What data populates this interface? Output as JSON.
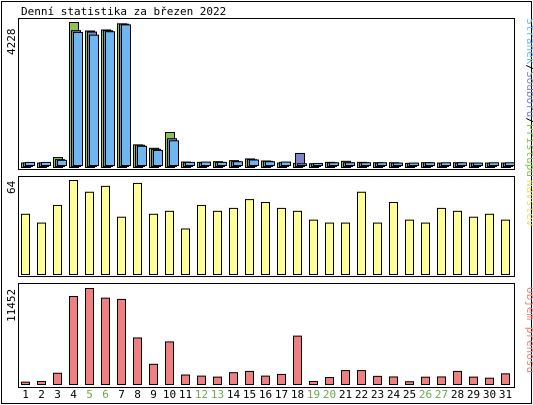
{
  "title": "Denní statistika za březen 2022",
  "panels": [
    {
      "id": "hits",
      "scale_label": "4228",
      "legend": [
        {
          "text": "Stránek",
          "color": "#6fb7f0"
        },
        {
          "text": "/",
          "color": "#000000"
        },
        {
          "text": "Souborů",
          "color": "#7f84c6"
        },
        {
          "text": "/",
          "color": "#000000"
        },
        {
          "text": "Přístupů",
          "color": "#8ec05a"
        }
      ]
    },
    {
      "id": "visits",
      "scale_label": "64",
      "legend": [
        {
          "text": "Návštěv",
          "color": "#e6e07a"
        }
      ]
    },
    {
      "id": "traffic",
      "scale_label": "11452",
      "legend": [
        {
          "text": "Objem přenosu",
          "color": "#f08080"
        }
      ]
    }
  ],
  "chart_data": [
    {
      "type": "bar",
      "x": [
        1,
        2,
        3,
        4,
        5,
        6,
        7,
        8,
        9,
        10,
        11,
        12,
        13,
        14,
        15,
        16,
        17,
        18,
        19,
        20,
        21,
        22,
        23,
        24,
        25,
        26,
        27,
        28,
        29,
        30,
        31
      ],
      "weekend_days": [
        5,
        6,
        12,
        13,
        19,
        20,
        26,
        27
      ],
      "weekend_color": "#6aa84f",
      "ylim": [
        0,
        4228
      ],
      "series": [
        {
          "name": "Přístupů",
          "color": "#8ec05a",
          "values": [
            130,
            130,
            290,
            4228,
            3980,
            4010,
            4190,
            660,
            560,
            1020,
            160,
            150,
            170,
            200,
            250,
            190,
            130,
            120,
            110,
            150,
            180,
            150,
            140,
            140,
            120,
            140,
            130,
            140,
            130,
            130,
            130
          ]
        },
        {
          "name": "Souborů",
          "color": "#7f84c6",
          "values": [
            110,
            110,
            200,
            3960,
            3920,
            3960,
            4150,
            620,
            500,
            810,
            110,
            110,
            120,
            140,
            200,
            150,
            120,
            380,
            80,
            110,
            110,
            110,
            100,
            100,
            90,
            110,
            100,
            100,
            100,
            100,
            100
          ]
        },
        {
          "name": "Stránek",
          "color": "#6fb7f0",
          "values": [
            90,
            90,
            150,
            3880,
            3800,
            3900,
            4100,
            560,
            440,
            720,
            90,
            100,
            90,
            110,
            160,
            110,
            100,
            50,
            60,
            80,
            80,
            80,
            80,
            70,
            70,
            80,
            80,
            80,
            70,
            80,
            80
          ]
        }
      ]
    },
    {
      "type": "bar",
      "x": [
        1,
        2,
        3,
        4,
        5,
        6,
        7,
        8,
        9,
        10,
        11,
        12,
        13,
        14,
        15,
        16,
        17,
        18,
        19,
        20,
        21,
        22,
        23,
        24,
        25,
        26,
        27,
        28,
        29,
        30,
        31
      ],
      "ylim": [
        0,
        64
      ],
      "series": [
        {
          "name": "Návštěv",
          "color": "#ffff99",
          "values": [
            41,
            35,
            47,
            64,
            56,
            60,
            39,
            62,
            41,
            43,
            31,
            47,
            43,
            45,
            51,
            49,
            45,
            43,
            37,
            35,
            35,
            56,
            35,
            49,
            37,
            35,
            45,
            43,
            39,
            41,
            37
          ]
        }
      ]
    },
    {
      "type": "bar",
      "x": [
        1,
        2,
        3,
        4,
        5,
        6,
        7,
        8,
        9,
        10,
        11,
        12,
        13,
        14,
        15,
        16,
        17,
        18,
        19,
        20,
        21,
        22,
        23,
        24,
        25,
        26,
        27,
        28,
        29,
        30,
        31
      ],
      "ylim": [
        0,
        11452
      ],
      "series": [
        {
          "name": "Objem přenosu",
          "color": "#f08080",
          "values": [
            280,
            360,
            1340,
            10500,
            11452,
            10300,
            10150,
            5550,
            2410,
            5080,
            1130,
            1000,
            880,
            1410,
            1560,
            1000,
            1200,
            5770,
            360,
            830,
            1660,
            1660,
            970,
            900,
            330,
            870,
            900,
            1560,
            880,
            750,
            1270
          ]
        }
      ]
    }
  ]
}
